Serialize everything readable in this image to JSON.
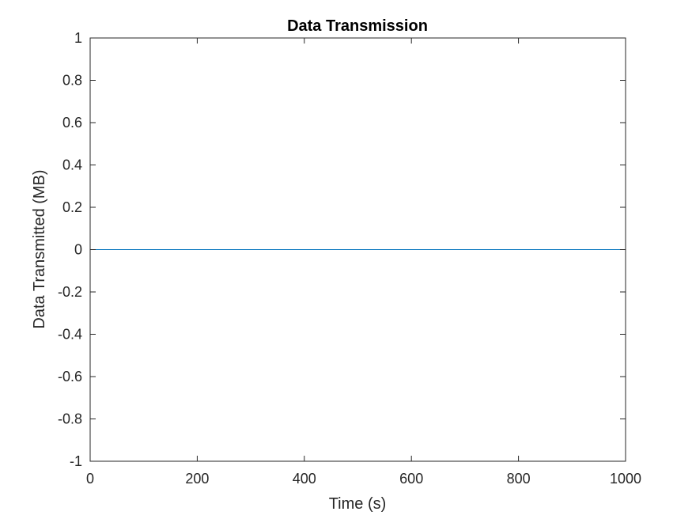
{
  "chart_data": {
    "type": "line",
    "title": "Data Transmission",
    "xlabel": "Time (s)",
    "ylabel": "Data Transmitted (MB)",
    "xlim": [
      0,
      1000
    ],
    "ylim": [
      -1,
      1
    ],
    "xticks": [
      0,
      200,
      400,
      600,
      800,
      1000
    ],
    "xtick_labels": [
      "0",
      "200",
      "400",
      "600",
      "800",
      "1000"
    ],
    "yticks": [
      -1,
      -0.8,
      -0.6,
      -0.4,
      -0.2,
      0,
      0.2,
      0.4,
      0.6,
      0.8,
      1
    ],
    "ytick_labels": [
      "-1",
      "-0.8",
      "-0.6",
      "-0.4",
      "-0.2",
      "0",
      "0.2",
      "0.4",
      "0.6",
      "0.8",
      "1"
    ],
    "grid": false,
    "box": true,
    "series": [
      {
        "color": "#0072BD",
        "x": [
          0,
          1000
        ],
        "y": [
          0,
          0
        ]
      }
    ]
  }
}
